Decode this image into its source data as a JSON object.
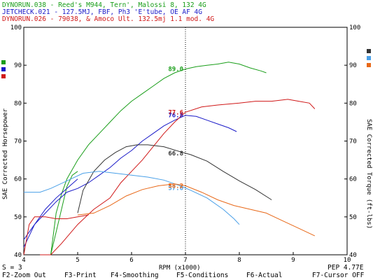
{
  "window": {
    "runs": [
      {
        "text": "DYNORUN.038 - Reed's M944, Tern', Malossi 8, 132     4G",
        "color": "#1a9e1a"
      },
      {
        "text": "JETCHECK.021 -  127.5MJ, FBF, Ph3 'E'tube, OE AF      4G",
        "color": "#1a1ac8"
      },
      {
        "text": "DYNORUN.026 - 79038, & Amoco Ult. 132.5mj 1.1 mod.  4G",
        "color": "#d01818"
      }
    ],
    "status": {
      "left": "S = 3",
      "right": "PEP 4.77E"
    },
    "fkeys": [
      "F2-Zoom Out",
      "F3-Print",
      "F4-Smoothing",
      "F5-Conditions",
      "F6-Actual",
      "F7-Cursor OFF"
    ]
  },
  "chart_data": {
    "type": "line",
    "xlabel": "RPM (x1000)",
    "ylabel_left": "SAE Corrected Horsepower",
    "ylabel_right": "SAE Corrected Torque (ft-lbs)",
    "xlim": [
      4,
      10
    ],
    "ylim_left": [
      40,
      100
    ],
    "ylim_right": [
      40,
      100
    ],
    "x_ticks": [
      "4",
      "5",
      "6",
      "7",
      "8",
      "9",
      "10"
    ],
    "y_ticks_left": [
      "40",
      "50",
      "60",
      "70",
      "80",
      "90",
      "100"
    ],
    "y_ticks_right": [
      "40",
      "50",
      "60",
      "70",
      "80",
      "90",
      "100"
    ],
    "cursor_x": 7.0,
    "series": [
      {
        "color": "#1a9e1a",
        "axis": "left",
        "points": [
          [
            4.5,
            40
          ],
          [
            4.6,
            51
          ],
          [
            4.7,
            56
          ],
          [
            4.8,
            60
          ],
          [
            5.0,
            65
          ],
          [
            5.2,
            69
          ],
          [
            5.4,
            72
          ],
          [
            5.6,
            75
          ],
          [
            5.8,
            78
          ],
          [
            6.0,
            80.5
          ],
          [
            6.2,
            82.5
          ],
          [
            6.4,
            84.5
          ],
          [
            6.6,
            86.5
          ],
          [
            6.8,
            88
          ],
          [
            7.0,
            89
          ],
          [
            7.2,
            89.6
          ],
          [
            7.4,
            90
          ],
          [
            7.6,
            90.3
          ],
          [
            7.8,
            90.8
          ],
          [
            8.0,
            90.3
          ],
          [
            8.2,
            89.3
          ],
          [
            8.4,
            88.5
          ],
          [
            8.5,
            88
          ]
        ]
      },
      {
        "color": "#1a9e1a",
        "axis": "right",
        "points": [
          [
            4.5,
            40
          ],
          [
            4.6,
            46
          ],
          [
            4.7,
            52
          ],
          [
            4.8,
            58
          ],
          [
            4.9,
            61
          ],
          [
            5.0,
            62
          ]
        ]
      },
      {
        "color": "#1a1ac8",
        "axis": "left",
        "points": [
          [
            4.0,
            44
          ],
          [
            4.2,
            48
          ],
          [
            4.4,
            51
          ],
          [
            4.6,
            54
          ],
          [
            4.8,
            56.5
          ],
          [
            5.0,
            57.5
          ],
          [
            5.2,
            59
          ],
          [
            5.4,
            61
          ],
          [
            5.6,
            63
          ],
          [
            5.8,
            65.5
          ],
          [
            6.0,
            67.5
          ],
          [
            6.2,
            70
          ],
          [
            6.4,
            72
          ],
          [
            6.6,
            74
          ],
          [
            6.8,
            75.5
          ],
          [
            7.0,
            76.8
          ],
          [
            7.2,
            76.5
          ],
          [
            7.4,
            75.5
          ],
          [
            7.6,
            74.5
          ],
          [
            7.8,
            73.5
          ],
          [
            7.95,
            72.5
          ]
        ]
      },
      {
        "color": "#1a1ac8",
        "axis": "right",
        "points": [
          [
            4.0,
            42
          ],
          [
            4.2,
            48
          ],
          [
            4.4,
            52
          ],
          [
            4.6,
            55
          ],
          [
            4.8,
            57.5
          ],
          [
            5.0,
            60
          ]
        ]
      },
      {
        "color": "#d01818",
        "axis": "left",
        "points": [
          [
            4.3,
            35
          ],
          [
            4.5,
            40
          ],
          [
            4.7,
            43
          ],
          [
            5.0,
            48
          ],
          [
            5.3,
            52
          ],
          [
            5.6,
            55
          ],
          [
            5.8,
            59
          ],
          [
            6.0,
            62
          ],
          [
            6.2,
            65
          ],
          [
            6.4,
            68.5
          ],
          [
            6.6,
            72
          ],
          [
            6.8,
            75
          ],
          [
            7.0,
            77.6
          ],
          [
            7.3,
            79
          ],
          [
            7.6,
            79.5
          ],
          [
            8.0,
            80
          ],
          [
            8.3,
            80.5
          ],
          [
            8.6,
            80.5
          ],
          [
            8.9,
            81
          ],
          [
            9.1,
            80.5
          ],
          [
            9.3,
            80
          ],
          [
            9.4,
            78.5
          ]
        ]
      },
      {
        "color": "#d01818",
        "axis": "right",
        "points": [
          [
            4.0,
            40
          ],
          [
            4.05,
            44
          ],
          [
            4.1,
            48
          ],
          [
            4.2,
            50
          ],
          [
            4.4,
            50
          ],
          [
            4.6,
            49.5
          ],
          [
            4.8,
            49.5
          ],
          [
            5.0,
            50
          ],
          [
            5.2,
            50.5
          ]
        ]
      },
      {
        "color": "#333333",
        "axis": "left",
        "points": [
          [
            5.0,
            51
          ],
          [
            5.1,
            57
          ],
          [
            5.3,
            62
          ],
          [
            5.5,
            65
          ],
          [
            5.7,
            67
          ],
          [
            5.9,
            68.5
          ],
          [
            6.1,
            69
          ],
          [
            6.3,
            69
          ],
          [
            6.6,
            68.5
          ],
          [
            6.9,
            67.2
          ],
          [
            7.1,
            66.4
          ],
          [
            7.4,
            64.7
          ],
          [
            7.7,
            62
          ],
          [
            8.0,
            59.5
          ],
          [
            8.3,
            57.2
          ],
          [
            8.6,
            54.5
          ]
        ]
      },
      {
        "color": "#4aa0e8",
        "axis": "left",
        "points": [
          [
            4.0,
            56.5
          ],
          [
            4.3,
            56.5
          ],
          [
            4.5,
            57.5
          ],
          [
            4.8,
            59.5
          ],
          [
            5.1,
            61.5
          ],
          [
            5.4,
            62
          ],
          [
            5.7,
            61.5
          ],
          [
            6.0,
            61
          ],
          [
            6.3,
            60.5
          ],
          [
            6.6,
            59.7
          ],
          [
            6.9,
            58.2
          ],
          [
            7.1,
            57
          ],
          [
            7.4,
            55
          ],
          [
            7.7,
            52
          ],
          [
            7.9,
            49.5
          ],
          [
            8.0,
            48
          ]
        ]
      },
      {
        "color": "#e86818",
        "axis": "left",
        "points": [
          [
            5.0,
            50.5
          ],
          [
            5.3,
            51
          ],
          [
            5.6,
            53
          ],
          [
            5.9,
            55.5
          ],
          [
            6.2,
            57.2
          ],
          [
            6.5,
            58.2
          ],
          [
            6.8,
            58.7
          ],
          [
            7.0,
            58.2
          ],
          [
            7.3,
            56.5
          ],
          [
            7.6,
            54.5
          ],
          [
            7.9,
            53
          ],
          [
            8.2,
            52
          ],
          [
            8.5,
            51
          ],
          [
            8.8,
            49
          ],
          [
            9.1,
            47
          ],
          [
            9.4,
            45
          ]
        ]
      }
    ],
    "data_labels": [
      {
        "text": "89.0",
        "x": 7.0,
        "y": 89.0,
        "color": "#1a9e1a"
      },
      {
        "text": "76.8",
        "x": 7.0,
        "y": 76.8,
        "color": "#1a1ac8"
      },
      {
        "text": "77.6",
        "x": 7.0,
        "y": 77.6,
        "color": "#d01818"
      },
      {
        "text": "66.8",
        "x": 7.0,
        "y": 66.8,
        "color": "#333333"
      },
      {
        "text": "57.6",
        "x": 7.0,
        "y": 57.6,
        "color": "#4aa0e8"
      },
      {
        "text": "58.2",
        "x": 7.0,
        "y": 58.2,
        "color": "#e86818"
      }
    ],
    "legend_markers_left": [
      "#1a9e1a",
      "#1a1ac8",
      "#d01818"
    ],
    "legend_markers_right": [
      "#333333",
      "#4aa0e8",
      "#e86818"
    ]
  }
}
